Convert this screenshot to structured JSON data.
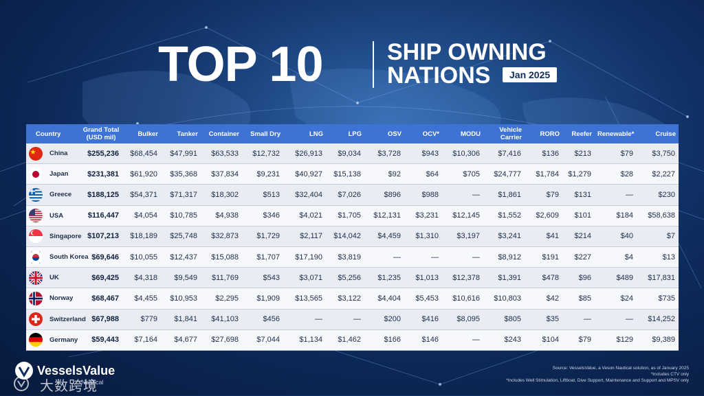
{
  "header": {
    "title_main": "TOP 10",
    "title_line1": "SHIP OWNING",
    "title_line2": "NATIONS",
    "date_badge": "Jan 2025"
  },
  "chart_data": {
    "type": "table",
    "columns": [
      "Country",
      "Grand Total (USD mil)",
      "Bulker",
      "Tanker",
      "Container",
      "Small Dry",
      "LNG",
      "LPG",
      "OSV",
      "OCV*",
      "MODU",
      "Vehicle Carrier",
      "RORO",
      "Reefer",
      "Renewable*",
      "Cruise"
    ],
    "header_lines": [
      [
        "Country"
      ],
      [
        "Grand Total",
        "(USD mil)"
      ],
      [
        "Bulker"
      ],
      [
        "Tanker"
      ],
      [
        "Container"
      ],
      [
        "Small Dry"
      ],
      [
        "LNG"
      ],
      [
        "LPG"
      ],
      [
        "OSV"
      ],
      [
        "OCV*"
      ],
      [
        "MODU"
      ],
      [
        "Vehicle",
        "Carrier"
      ],
      [
        "RORO"
      ],
      [
        "Reefer"
      ],
      [
        "Renewable*"
      ],
      [
        "Cruise"
      ]
    ],
    "rows": [
      {
        "country": "China",
        "flag": "china-flag-icon",
        "values": [
          "$255,236",
          "$68,454",
          "$47,991",
          "$63,533",
          "$12,732",
          "$26,913",
          "$9,034",
          "$3,728",
          "$943",
          "$10,306",
          "$7,416",
          "$136",
          "$213",
          "$79",
          "$3,750"
        ]
      },
      {
        "country": "Japan",
        "flag": "japan-flag-icon",
        "values": [
          "$231,381",
          "$61,920",
          "$35,368",
          "$37,834",
          "$9,231",
          "$40,927",
          "$15,138",
          "$92",
          "$64",
          "$705",
          "$24,777",
          "$1,784",
          "$1,279",
          "$28",
          "$2,227"
        ]
      },
      {
        "country": "Greece",
        "flag": "greece-flag-icon",
        "values": [
          "$188,125",
          "$54,371",
          "$71,317",
          "$18,302",
          "$513",
          "$32,404",
          "$7,026",
          "$896",
          "$988",
          "—",
          "$1,861",
          "$79",
          "$131",
          "—",
          "$230"
        ]
      },
      {
        "country": "USA",
        "flag": "usa-flag-icon",
        "values": [
          "$116,447",
          "$4,054",
          "$10,785",
          "$4,938",
          "$346",
          "$4,021",
          "$1,705",
          "$12,131",
          "$3,231",
          "$12,145",
          "$1,552",
          "$2,609",
          "$101",
          "$184",
          "$58,638"
        ]
      },
      {
        "country": "Singapore",
        "flag": "singapore-flag-icon",
        "values": [
          "$107,213",
          "$18,189",
          "$25,748",
          "$32,873",
          "$1,729",
          "$2,117",
          "$14,042",
          "$4,459",
          "$1,310",
          "$3,197",
          "$3,241",
          "$41",
          "$214",
          "$40",
          "$7"
        ]
      },
      {
        "country": "South Korea",
        "flag": "south-korea-flag-icon",
        "values": [
          "$69,646",
          "$10,055",
          "$12,437",
          "$15,088",
          "$1,707",
          "$17,190",
          "$3,819",
          "—",
          "—",
          "—",
          "$8,912",
          "$191",
          "$227",
          "$4",
          "$13"
        ]
      },
      {
        "country": "UK",
        "flag": "uk-flag-icon",
        "values": [
          "$69,425",
          "$4,318",
          "$9,549",
          "$11,769",
          "$543",
          "$3,071",
          "$5,256",
          "$1,235",
          "$1,013",
          "$12,378",
          "$1,391",
          "$478",
          "$96",
          "$489",
          "$17,831"
        ]
      },
      {
        "country": "Norway",
        "flag": "norway-flag-icon",
        "values": [
          "$68,467",
          "$4,455",
          "$10,953",
          "$2,295",
          "$1,909",
          "$13,565",
          "$3,122",
          "$4,404",
          "$5,453",
          "$10,616",
          "$10,803",
          "$42",
          "$85",
          "$24",
          "$735"
        ]
      },
      {
        "country": "Switzerland",
        "flag": "switzerland-flag-icon",
        "values": [
          "$67,988",
          "$779",
          "$1,841",
          "$41,103",
          "$456",
          "—",
          "—",
          "$200",
          "$416",
          "$8,095",
          "$805",
          "$35",
          "—",
          "—",
          "$14,252"
        ]
      },
      {
        "country": "Germany",
        "flag": "germany-flag-icon",
        "values": [
          "$59,443",
          "$7,164",
          "$4,677",
          "$27,698",
          "$7,044",
          "$1,134",
          "$1,462",
          "$166",
          "$146",
          "—",
          "$243",
          "$104",
          "$79",
          "$129",
          "$9,389"
        ]
      }
    ]
  },
  "footer": {
    "logo_text": "VesselsValue",
    "logo_sub": "Nautical",
    "watermark": "大数跨境",
    "notes": [
      "Source: VesselsValue, a Veson Nautical solution, as of January 2025",
      "*Includes CTV only",
      "*Includes Well Stimulation, Liftboat, Dive Support, Maintenance and Support and MPSV only"
    ]
  },
  "colors": {
    "header_blue": "#3e73d6",
    "background_navy": "#0f2f63",
    "row_light": "#f7f8fb",
    "row_alt": "#e9edf3"
  }
}
